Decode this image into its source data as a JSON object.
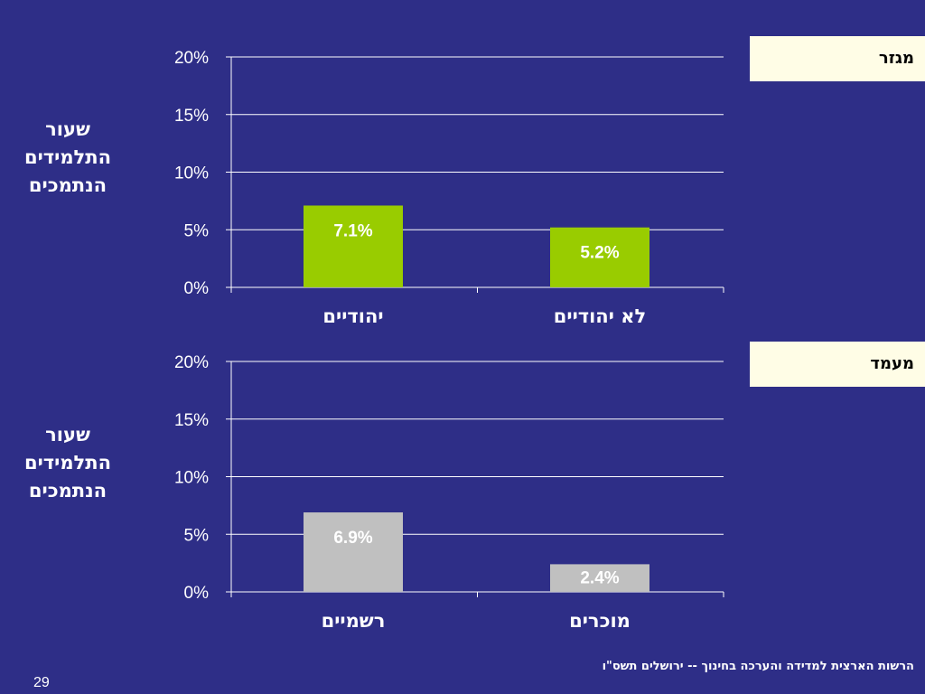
{
  "panels": [
    {
      "tag": "מגזר",
      "ylabel": "שעור\nהתלמידים\nהנתמכים"
    },
    {
      "tag": "מעמד",
      "ylabel": "שעור\nהתלמידים\nהנתמכים"
    }
  ],
  "footer": "הרשות הארצית למדידה והערכה בחינוך  -- ירושלים תשס\"ו",
  "page_number": "29",
  "chart_data": [
    {
      "type": "bar",
      "categories": [
        "יהודיים",
        "לא יהודיים"
      ],
      "values": [
        7.1,
        5.2
      ],
      "data_labels": [
        "7.1%",
        "5.2%"
      ],
      "yticks": [
        "0%",
        "5%",
        "10%",
        "15%",
        "20%"
      ],
      "ylim": [
        0,
        20
      ],
      "grid": true,
      "bar_color": "#99cc00"
    },
    {
      "type": "bar",
      "categories": [
        "רשמיים",
        "מוכרים"
      ],
      "values": [
        6.9,
        2.4
      ],
      "data_labels": [
        "6.9%",
        "2.4%"
      ],
      "yticks": [
        "0%",
        "5%",
        "10%",
        "15%",
        "20%"
      ],
      "ylim": [
        0,
        20
      ],
      "grid": true,
      "bar_color": "#c0c0c0"
    }
  ]
}
